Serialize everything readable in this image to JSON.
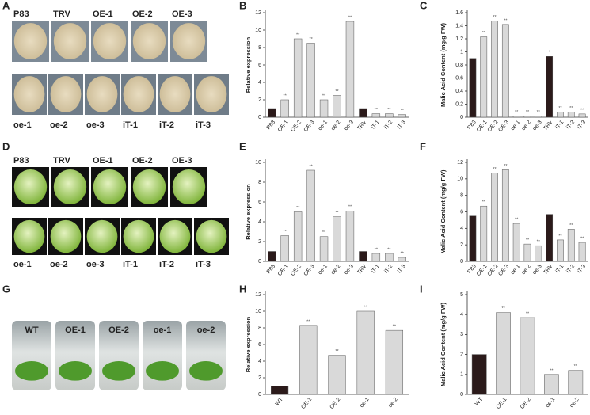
{
  "panels": [
    {
      "letter": "A",
      "top": [
        "P83",
        "TRV",
        "OE-1",
        "OE-2",
        "OE-3"
      ],
      "bottom": [
        "oe-1",
        "oe-2",
        "oe-3",
        "iT-1",
        "iT-2",
        "iT-3"
      ]
    },
    {
      "letter": "D",
      "top": [
        "P83",
        "TRV",
        "OE-1",
        "OE-2",
        "OE-3"
      ],
      "bottom": [
        "oe-1",
        "oe-2",
        "oe-3",
        "iT-1",
        "iT-2",
        "iT-3"
      ]
    },
    {
      "letter": "G",
      "top": [
        "WT",
        "OE-1",
        "OE-2",
        "oe-1",
        "oe-2"
      ]
    }
  ],
  "chart_data": [
    {
      "type": "bar",
      "letter": "B",
      "y_label": "Relative expression",
      "categories": [
        "P83",
        "OE-1",
        "OE-2",
        "OE-3",
        "oe-1",
        "oe-2",
        "oe-3",
        "TRV",
        "iT-1",
        "iT-2",
        "iT-3"
      ],
      "values": [
        1,
        2,
        9,
        8.5,
        2,
        2.5,
        11,
        1,
        0.4,
        0.4,
        0.3
      ],
      "colors": [
        "#2b1a1a",
        "#d9d9d9",
        "#d9d9d9",
        "#d9d9d9",
        "#d9d9d9",
        "#d9d9d9",
        "#d9d9d9",
        "#2b1a1a",
        "#d9d9d9",
        "#d9d9d9",
        "#d9d9d9"
      ],
      "annotations": [
        null,
        "**",
        "**",
        "**",
        "**",
        "**",
        "**",
        null,
        "**",
        "**",
        "**"
      ],
      "ylim": [
        0,
        12
      ],
      "yticks": [
        0,
        2,
        4,
        6,
        8,
        10,
        12
      ]
    },
    {
      "type": "bar",
      "letter": "C",
      "y_label": "Malic Acid Content (mg/g FW)",
      "categories": [
        "P83",
        "OE-1",
        "OE-2",
        "OE-3",
        "oe-1",
        "oe-2",
        "oe-3",
        "TRV",
        "iT-1",
        "iT-2",
        "iT-3"
      ],
      "values": [
        0.9,
        1.23,
        1.47,
        1.42,
        0.02,
        0.02,
        0.02,
        0.93,
        0.08,
        0.08,
        0.05
      ],
      "colors": [
        "#2b1a1a",
        "#d9d9d9",
        "#d9d9d9",
        "#d9d9d9",
        "#d9d9d9",
        "#d9d9d9",
        "#d9d9d9",
        "#2b1a1a",
        "#d9d9d9",
        "#d9d9d9",
        "#d9d9d9"
      ],
      "annotations": [
        null,
        "**",
        "**",
        "**",
        "**",
        "**",
        "**",
        "*",
        "**",
        "**",
        "**"
      ],
      "ylim": [
        0,
        1.6
      ],
      "yticks": [
        0,
        0.2,
        0.4,
        0.6,
        0.8,
        1,
        1.2,
        1.4,
        1.6
      ]
    },
    {
      "type": "bar",
      "letter": "E",
      "y_label": "Relative expression",
      "categories": [
        "P83",
        "OE-1",
        "OE-2",
        "OE-3",
        "oe-1",
        "oe-2",
        "oe-3",
        "TRV",
        "iT-1",
        "iT-2",
        "iT-3"
      ],
      "values": [
        1,
        2.6,
        5,
        9.2,
        2.5,
        4.5,
        5.1,
        1,
        0.8,
        0.8,
        0.4
      ],
      "colors": [
        "#2b1a1a",
        "#d9d9d9",
        "#d9d9d9",
        "#d9d9d9",
        "#d9d9d9",
        "#d9d9d9",
        "#d9d9d9",
        "#2b1a1a",
        "#d9d9d9",
        "#d9d9d9",
        "#d9d9d9"
      ],
      "annotations": [
        null,
        "**",
        "**",
        "**",
        "**",
        "**",
        "**",
        null,
        "**",
        "**",
        "**"
      ],
      "ylim": [
        0,
        10
      ],
      "yticks": [
        0,
        2,
        4,
        6,
        8,
        10
      ]
    },
    {
      "type": "bar",
      "letter": "F",
      "y_label": "Malic Acid Content (mg/g FW)",
      "categories": [
        "P83",
        "OE-1",
        "OE-2",
        "OE-3",
        "oe-1",
        "oe-2",
        "oe-3",
        "TRV",
        "iT-1",
        "iT-2",
        "iT-3"
      ],
      "values": [
        5.5,
        6.7,
        10.7,
        11.1,
        4.6,
        2.1,
        1.9,
        5.7,
        2.6,
        3.9,
        2.3
      ],
      "colors": [
        "#2b1a1a",
        "#d9d9d9",
        "#d9d9d9",
        "#d9d9d9",
        "#d9d9d9",
        "#d9d9d9",
        "#d9d9d9",
        "#2b1a1a",
        "#d9d9d9",
        "#d9d9d9",
        "#d9d9d9"
      ],
      "annotations": [
        null,
        "**",
        "**",
        "**",
        "**",
        "**",
        "**",
        null,
        "**",
        "**",
        "**"
      ],
      "ylim": [
        0,
        12
      ],
      "yticks": [
        0,
        2,
        4,
        6,
        8,
        10,
        12
      ]
    },
    {
      "type": "bar",
      "letter": "H",
      "y_label": "Relative expression",
      "categories": [
        "WT",
        "OE-1",
        "OE-2",
        "oe-1",
        "oe-2"
      ],
      "values": [
        1,
        8.3,
        4.7,
        10,
        7.7
      ],
      "colors": [
        "#2b1a1a",
        "#d9d9d9",
        "#d9d9d9",
        "#d9d9d9",
        "#d9d9d9"
      ],
      "annotations": [
        null,
        "**",
        "**",
        "**",
        "**"
      ],
      "ylim": [
        0,
        12
      ],
      "yticks": [
        0,
        2,
        4,
        6,
        8,
        10,
        12
      ]
    },
    {
      "type": "bar",
      "letter": "I",
      "y_label": "Malic Acid Content (mg/g FW)",
      "categories": [
        "WT",
        "OE-1",
        "OE-2",
        "oe-1",
        "oe-2"
      ],
      "values": [
        2,
        4.1,
        3.85,
        1,
        1.2
      ],
      "colors": [
        "#2b1a1a",
        "#d9d9d9",
        "#d9d9d9",
        "#d9d9d9",
        "#d9d9d9"
      ],
      "annotations": [
        null,
        "**",
        "**",
        "**",
        "**"
      ],
      "ylim": [
        0,
        5
      ],
      "yticks": [
        0,
        1,
        2,
        3,
        4,
        5
      ]
    }
  ]
}
